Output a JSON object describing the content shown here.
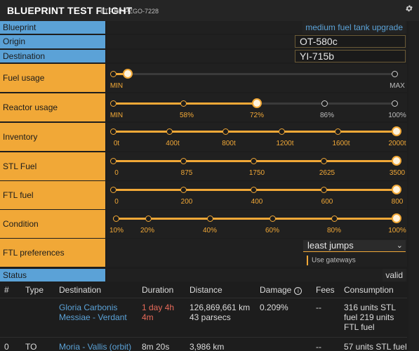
{
  "header": {
    "title": "BLUEPRINT TEST FLIGHT",
    "subtitle": "BTF BP-PZGO-7228",
    "gear_icon": "gear-icon"
  },
  "blueprint": {
    "label": "Blueprint",
    "value": "medium fuel tank upgrade"
  },
  "origin": {
    "label": "Origin",
    "value": "OT-580c"
  },
  "destination": {
    "label": "Destination",
    "value": "YI-715b"
  },
  "fuel_usage": {
    "label": "Fuel usage",
    "ticks": [
      "MIN",
      "MAX"
    ],
    "value_fraction": 0.04
  },
  "reactor_usage": {
    "label": "Reactor usage",
    "ticks": [
      "MIN",
      "58%",
      "72%",
      "86%",
      "100%"
    ],
    "selected_index": 2
  },
  "inventory": {
    "label": "Inventory",
    "ticks": [
      "0t",
      "400t",
      "800t",
      "1200t",
      "1600t",
      "2000t"
    ],
    "selected_index": 5
  },
  "stl_fuel": {
    "label": "STL Fuel",
    "ticks": [
      "0",
      "875",
      "1750",
      "2625",
      "3500"
    ],
    "selected_index": 4
  },
  "ftl_fuel": {
    "label": "FTL fuel",
    "ticks": [
      "0",
      "200",
      "400",
      "600",
      "800"
    ],
    "selected_index": 4
  },
  "condition": {
    "label": "Condition",
    "ticks": [
      "10%",
      "20%",
      "40%",
      "60%",
      "80%",
      "100%"
    ],
    "selected_index": 5
  },
  "ftl_preferences": {
    "label": "FTL preferences",
    "selected": "least jumps",
    "checkbox_label": "Use gateways",
    "checked": true
  },
  "status": {
    "label": "Status",
    "value": "valid"
  },
  "table": {
    "headers": [
      "#",
      "Type",
      "Destination",
      "Duration",
      "Distance",
      "Damage",
      "Fees",
      "Consumption"
    ],
    "rows": [
      {
        "index": "",
        "type": "",
        "destination": "Gloria Carbonis Messiae - Verdant",
        "duration": "1 day 4h 4m",
        "distance": "126,869,661 km 43 parsecs",
        "damage": "0.209%",
        "fees": "--",
        "consumption": "316 units STL fuel 219 units FTL fuel"
      },
      {
        "index": "0",
        "type": "TO",
        "destination": "Moria - Vallis (orbit)",
        "duration": "8m 20s",
        "distance": "3,986 km",
        "damage": "",
        "fees": "--",
        "consumption": "57 units STL fuel"
      }
    ]
  },
  "colors": {
    "orange": "#f1a837",
    "blue": "#5ba2d7",
    "red": "#e86a5a"
  }
}
